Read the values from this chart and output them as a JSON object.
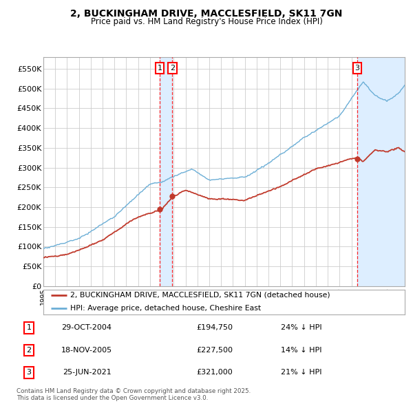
{
  "title": "2, BUCKINGHAM DRIVE, MACCLESFIELD, SK11 7GN",
  "subtitle": "Price paid vs. HM Land Registry's House Price Index (HPI)",
  "ylim": [
    0,
    580000
  ],
  "yticks": [
    0,
    50000,
    100000,
    150000,
    200000,
    250000,
    300000,
    350000,
    400000,
    450000,
    500000,
    550000
  ],
  "ytick_labels": [
    "£0",
    "£50K",
    "£100K",
    "£150K",
    "£200K",
    "£250K",
    "£300K",
    "£350K",
    "£400K",
    "£450K",
    "£500K",
    "£550K"
  ],
  "legend_line1": "2, BUCKINGHAM DRIVE, MACCLESFIELD, SK11 7GN (detached house)",
  "legend_line2": "HPI: Average price, detached house, Cheshire East",
  "transactions": [
    {
      "num": 1,
      "date": "29-OCT-2004",
      "price": "£194,750",
      "pct": "24% ↓ HPI",
      "x_year": 2004.83
    },
    {
      "num": 2,
      "date": "18-NOV-2005",
      "price": "£227,500",
      "pct": "14% ↓ HPI",
      "x_year": 2005.88
    },
    {
      "num": 3,
      "date": "25-JUN-2021",
      "price": "£321,000",
      "pct": "21% ↓ HPI",
      "x_year": 2021.48
    }
  ],
  "transaction_prices": [
    194750,
    227500,
    321000
  ],
  "footer": "Contains HM Land Registry data © Crown copyright and database right 2025.\nThis data is licensed under the Open Government Licence v3.0.",
  "hpi_color": "#6baed6",
  "price_color": "#c0392b",
  "shade_color": "#ddeeff",
  "background_color": "#ffffff",
  "grid_color": "#cccccc",
  "xlim_start": 1995,
  "xlim_end": 2025.5
}
